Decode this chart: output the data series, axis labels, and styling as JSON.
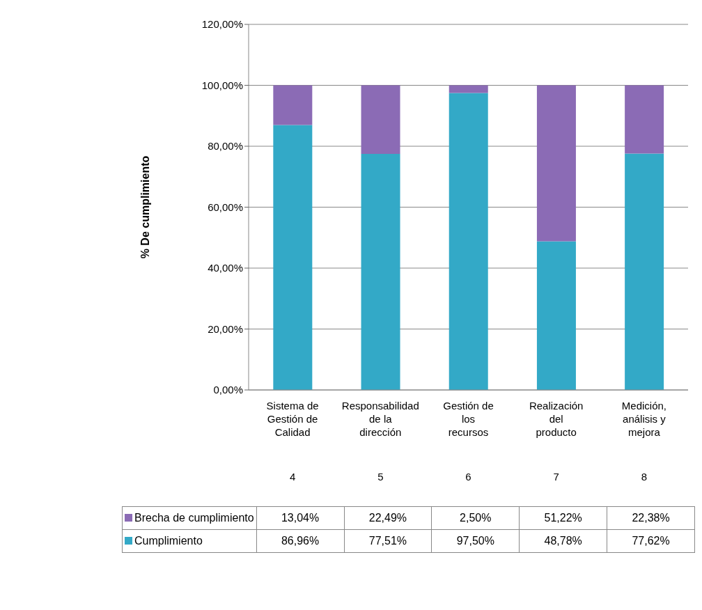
{
  "chart_data": {
    "type": "bar",
    "stacked": true,
    "ylabel": "% De cumplimiento",
    "categories": [
      "Sistema de Gestión de Calidad\n4",
      "Responsabilidad de la dirección\n5",
      "Gestión de los recursos\n6",
      "Realización del producto\n7",
      "Medición, análisis y mejora\n8"
    ],
    "series": [
      {
        "name": "Cumplimiento",
        "color": "#33a9c7",
        "values": [
          86.96,
          77.51,
          97.5,
          48.78,
          77.62
        ],
        "value_labels": [
          "86,96%",
          "77,51%",
          "97,50%",
          "48,78%",
          "77,62%"
        ]
      },
      {
        "name": "Brecha de cumplimiento",
        "color": "#8b6bb5",
        "values": [
          13.04,
          22.49,
          2.5,
          51.22,
          22.38
        ],
        "value_labels": [
          "13,04%",
          "22,49%",
          "2,50%",
          "51,22%",
          "22,38%"
        ]
      }
    ],
    "ylim": [
      0,
      120
    ],
    "yticks": [
      {
        "value": 0,
        "label": "0,00%"
      },
      {
        "value": 20,
        "label": "20,00%"
      },
      {
        "value": 40,
        "label": "40,00%"
      },
      {
        "value": 60,
        "label": "60,00%"
      },
      {
        "value": 80,
        "label": "80,00%"
      },
      {
        "value": 100,
        "label": "100,00%"
      },
      {
        "value": 120,
        "label": "120,00%"
      }
    ],
    "grid": "y",
    "legend": "bottom"
  }
}
